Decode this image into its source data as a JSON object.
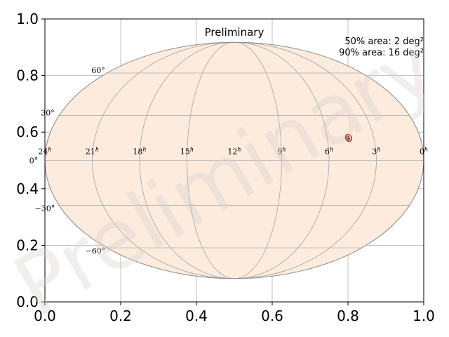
{
  "chart_data": {
    "type": "scatter",
    "title": "Preliminary",
    "xlim": [
      0.0,
      1.0
    ],
    "ylim": [
      0.0,
      1.0
    ],
    "x_ticks": [
      "0.0",
      "0.2",
      "0.4",
      "0.6",
      "0.8",
      "1.0"
    ],
    "y_ticks": [
      "0.0",
      "0.2",
      "0.4",
      "0.6",
      "0.8",
      "1.0"
    ],
    "grid": true,
    "annotations": [
      "50% area: 2 deg²",
      "90% area: 16 deg²"
    ],
    "sky_map": {
      "projection": "mollweide",
      "ra_labels": [
        "24h",
        "21h",
        "18h",
        "15h",
        "12h",
        "9h",
        "6h",
        "3h",
        "0h"
      ],
      "dec_labels": [
        "60°",
        "30°",
        "0°",
        "−30°",
        "−60°"
      ],
      "localization": {
        "x": 0.8,
        "y": 0.58,
        "contours": [
          "50%",
          "90%"
        ]
      }
    },
    "watermark": "Preliminary",
    "colors": {
      "map_fill": "#fdebdd",
      "contour": "#8b0000",
      "grid": "#b0b0b0"
    }
  }
}
